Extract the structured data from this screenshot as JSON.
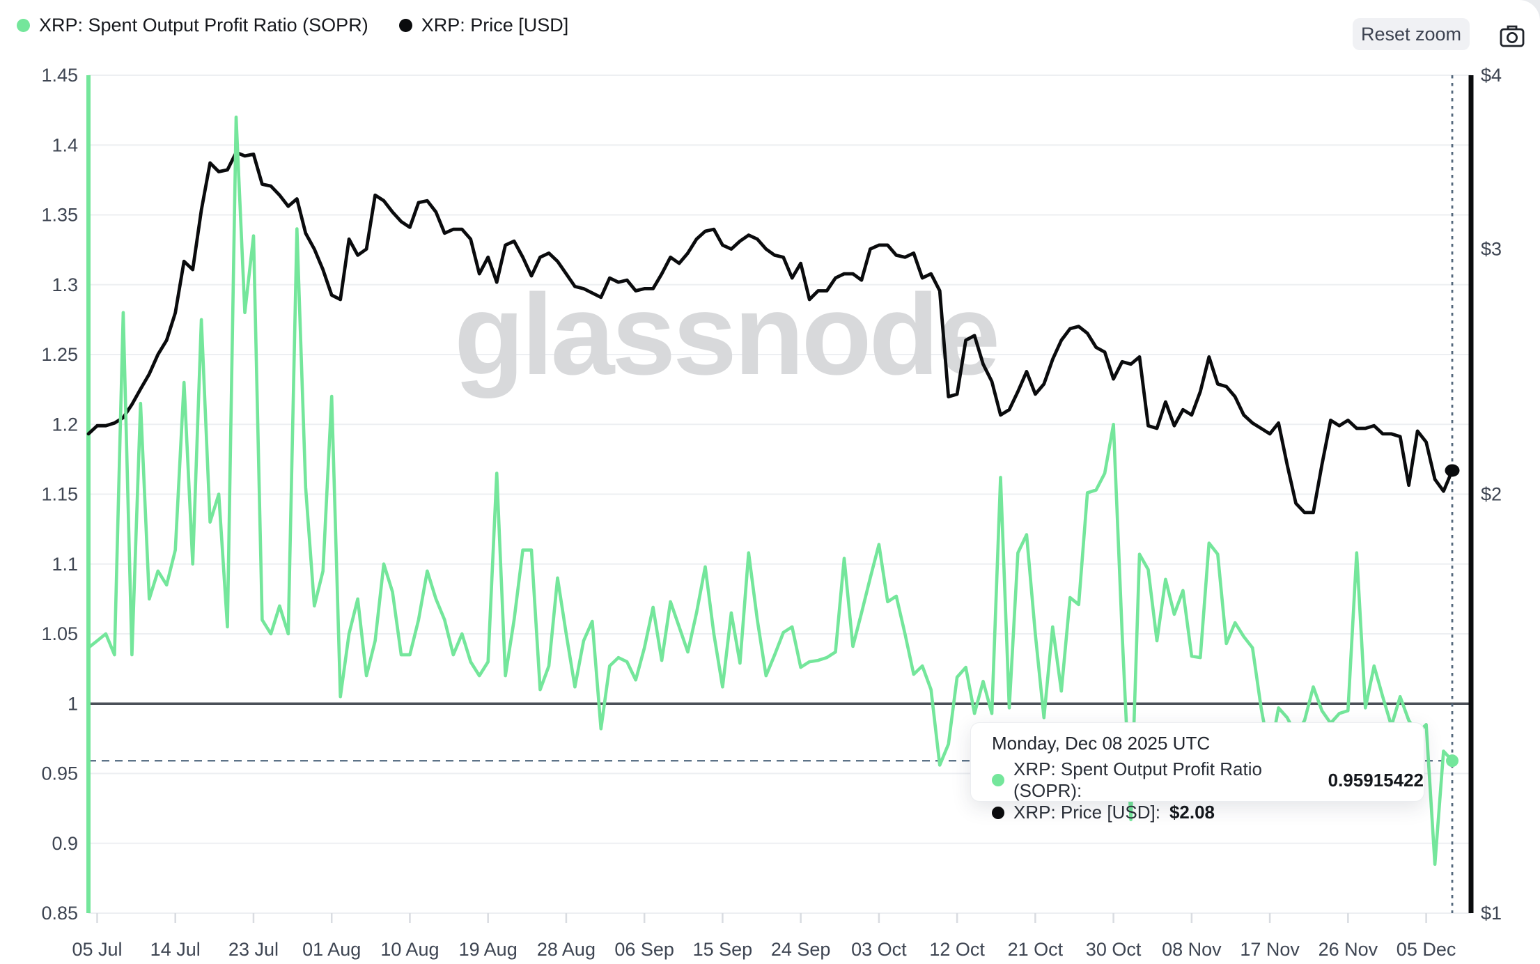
{
  "legend": {
    "items": [
      {
        "label": "XRP: Spent Output Profit Ratio (SOPR)",
        "color": "#74E69B"
      },
      {
        "label": "XRP: Price [USD]",
        "color": "#0A0B0D"
      }
    ]
  },
  "toolbar": {
    "reset_zoom_label": "Reset zoom",
    "camera_icon": "camera-icon"
  },
  "watermark_text": "glassnode",
  "tooltip": {
    "title": "Monday, Dec 08 2025 UTC",
    "rows": [
      {
        "color": "#74E69B",
        "label": "XRP: Spent Output Profit Ratio (SOPR):",
        "value": "0.95915422"
      },
      {
        "color": "#0A0B0D",
        "label": "XRP: Price [USD]:",
        "value": "$2.08"
      }
    ]
  },
  "chart_data": {
    "type": "line",
    "title": "",
    "grid": true,
    "left_axis": {
      "ticks": [
        "1.45",
        "1.4",
        "1.35",
        "1.3",
        "1.25",
        "1.2",
        "1.15",
        "1.1",
        "1.05",
        "1",
        "0.95",
        "0.9",
        "0.85"
      ],
      "range": [
        0.85,
        1.45
      ],
      "scale": "linear",
      "color": "#74E69B"
    },
    "right_axis": {
      "ticks": [
        {
          "label": "$4",
          "value": 4
        },
        {
          "label": "$3",
          "value": 3
        },
        {
          "label": "$2",
          "value": 2
        },
        {
          "label": "$1",
          "value": 1
        }
      ],
      "range": [
        1,
        4
      ],
      "scale": "log",
      "color": "#0A0B0D"
    },
    "x_ticks": [
      {
        "label": "05 Jul",
        "day_index": 1
      },
      {
        "label": "14 Jul",
        "day_index": 10
      },
      {
        "label": "23 Jul",
        "day_index": 19
      },
      {
        "label": "01 Aug",
        "day_index": 28
      },
      {
        "label": "10 Aug",
        "day_index": 37
      },
      {
        "label": "19 Aug",
        "day_index": 46
      },
      {
        "label": "28 Aug",
        "day_index": 55
      },
      {
        "label": "06 Sep",
        "day_index": 64
      },
      {
        "label": "15 Sep",
        "day_index": 73
      },
      {
        "label": "24 Sep",
        "day_index": 82
      },
      {
        "label": "03 Oct",
        "day_index": 91
      },
      {
        "label": "12 Oct",
        "day_index": 100
      },
      {
        "label": "21 Oct",
        "day_index": 109
      },
      {
        "label": "30 Oct",
        "day_index": 118
      },
      {
        "label": "08 Nov",
        "day_index": 127
      },
      {
        "label": "17 Nov",
        "day_index": 136
      },
      {
        "label": "26 Nov",
        "day_index": 145
      },
      {
        "label": "05 Dec",
        "day_index": 154
      }
    ],
    "reference_line_sopr": 1.0,
    "crosshair": {
      "date": "Dec 08 2025",
      "sopr": 0.95915422,
      "price_usd": 2.08
    },
    "dates": [
      "Jul 04",
      "Jul 05",
      "Jul 06",
      "Jul 07",
      "Jul 08",
      "Jul 09",
      "Jul 10",
      "Jul 11",
      "Jul 12",
      "Jul 13",
      "Jul 14",
      "Jul 15",
      "Jul 16",
      "Jul 17",
      "Jul 18",
      "Jul 19",
      "Jul 20",
      "Jul 21",
      "Jul 22",
      "Jul 23",
      "Jul 24",
      "Jul 25",
      "Jul 26",
      "Jul 27",
      "Jul 28",
      "Jul 29",
      "Jul 30",
      "Jul 31",
      "Aug 01",
      "Aug 02",
      "Aug 03",
      "Aug 04",
      "Aug 05",
      "Aug 06",
      "Aug 07",
      "Aug 08",
      "Aug 09",
      "Aug 10",
      "Aug 11",
      "Aug 12",
      "Aug 13",
      "Aug 14",
      "Aug 15",
      "Aug 16",
      "Aug 17",
      "Aug 18",
      "Aug 19",
      "Aug 20",
      "Aug 21",
      "Aug 22",
      "Aug 23",
      "Aug 24",
      "Aug 25",
      "Aug 26",
      "Aug 27",
      "Aug 28",
      "Aug 29",
      "Aug 30",
      "Aug 31",
      "Sep 01",
      "Sep 02",
      "Sep 03",
      "Sep 04",
      "Sep 05",
      "Sep 06",
      "Sep 07",
      "Sep 08",
      "Sep 09",
      "Sep 10",
      "Sep 11",
      "Sep 12",
      "Sep 13",
      "Sep 14",
      "Sep 15",
      "Sep 16",
      "Sep 17",
      "Sep 18",
      "Sep 19",
      "Sep 20",
      "Sep 21",
      "Sep 22",
      "Sep 23",
      "Sep 24",
      "Sep 25",
      "Sep 26",
      "Sep 27",
      "Sep 28",
      "Sep 29",
      "Sep 30",
      "Oct 01",
      "Oct 02",
      "Oct 03",
      "Oct 04",
      "Oct 05",
      "Oct 06",
      "Oct 07",
      "Oct 08",
      "Oct 09",
      "Oct 10",
      "Oct 11",
      "Oct 12",
      "Oct 13",
      "Oct 14",
      "Oct 15",
      "Oct 16",
      "Oct 17",
      "Oct 18",
      "Oct 19",
      "Oct 20",
      "Oct 21",
      "Oct 22",
      "Oct 23",
      "Oct 24",
      "Oct 25",
      "Oct 26",
      "Oct 27",
      "Oct 28",
      "Oct 29",
      "Oct 30",
      "Oct 31",
      "Nov 01",
      "Nov 02",
      "Nov 03",
      "Nov 04",
      "Nov 05",
      "Nov 06",
      "Nov 07",
      "Nov 08",
      "Nov 09",
      "Nov 10",
      "Nov 11",
      "Nov 12",
      "Nov 13",
      "Nov 14",
      "Nov 15",
      "Nov 16",
      "Nov 17",
      "Nov 18",
      "Nov 19",
      "Nov 20",
      "Nov 21",
      "Nov 22",
      "Nov 23",
      "Nov 24",
      "Nov 25",
      "Nov 26",
      "Nov 27",
      "Nov 28",
      "Nov 29",
      "Nov 30",
      "Dec 01",
      "Dec 02",
      "Dec 03",
      "Dec 04",
      "Dec 05",
      "Dec 06",
      "Dec 07",
      "Dec 08"
    ],
    "series": [
      {
        "name": "XRP: Spent Output Profit Ratio (SOPR)",
        "axis": "left",
        "color": "#74E69B",
        "values": [
          1.04,
          1.045,
          1.05,
          1.035,
          1.28,
          1.035,
          1.215,
          1.075,
          1.095,
          1.085,
          1.11,
          1.23,
          1.1,
          1.275,
          1.13,
          1.15,
          1.055,
          1.42,
          1.28,
          1.335,
          1.06,
          1.05,
          1.07,
          1.05,
          1.34,
          1.155,
          1.07,
          1.095,
          1.22,
          1.005,
          1.05,
          1.075,
          1.02,
          1.045,
          1.1,
          1.08,
          1.035,
          1.035,
          1.06,
          1.095,
          1.075,
          1.06,
          1.035,
          1.05,
          1.03,
          1.02,
          1.03,
          1.165,
          1.02,
          1.06,
          1.11,
          1.11,
          1.01,
          1.027,
          1.09,
          1.05,
          1.012,
          1.045,
          1.059,
          0.982,
          1.027,
          1.033,
          1.03,
          1.017,
          1.04,
          1.069,
          1.031,
          1.073,
          1.055,
          1.037,
          1.065,
          1.098,
          1.05,
          1.012,
          1.065,
          1.029,
          1.108,
          1.06,
          1.02,
          1.035,
          1.051,
          1.055,
          1.026,
          1.03,
          1.031,
          1.033,
          1.037,
          1.104,
          1.041,
          1.065,
          1.09,
          1.114,
          1.073,
          1.077,
          1.05,
          1.021,
          1.027,
          1.01,
          0.956,
          0.971,
          1.019,
          1.026,
          0.993,
          1.016,
          0.993,
          1.162,
          0.997,
          1.108,
          1.121,
          1.05,
          0.99,
          1.055,
          1.009,
          1.076,
          1.071,
          1.151,
          1.153,
          1.165,
          1.2,
          1.05,
          0.917,
          1.107,
          1.096,
          1.045,
          1.089,
          1.064,
          1.081,
          1.034,
          1.033,
          1.115,
          1.107,
          1.043,
          1.058,
          1.048,
          1.04,
          0.997,
          0.963,
          0.997,
          0.99,
          0.978,
          0.988,
          1.012,
          0.995,
          0.986,
          0.993,
          0.995,
          1.108,
          0.997,
          1.027,
          1.005,
          0.984,
          1.005,
          0.988,
          0.979,
          0.985,
          0.885,
          0.966,
          0.95915422
        ]
      },
      {
        "name": "XRP: Price [USD]",
        "axis": "right",
        "color": "#0A0B0D",
        "values": [
          2.21,
          2.24,
          2.24,
          2.25,
          2.27,
          2.32,
          2.38,
          2.44,
          2.52,
          2.58,
          2.7,
          2.94,
          2.9,
          3.2,
          3.46,
          3.41,
          3.42,
          3.52,
          3.5,
          3.51,
          3.34,
          3.33,
          3.28,
          3.22,
          3.26,
          3.08,
          3.0,
          2.9,
          2.78,
          2.76,
          3.05,
          2.97,
          3.0,
          3.28,
          3.25,
          3.19,
          3.14,
          3.11,
          3.24,
          3.25,
          3.19,
          3.08,
          3.1,
          3.1,
          3.05,
          2.88,
          2.96,
          2.84,
          3.02,
          3.04,
          2.96,
          2.87,
          2.96,
          2.98,
          2.94,
          2.88,
          2.82,
          2.81,
          2.79,
          2.77,
          2.86,
          2.84,
          2.85,
          2.8,
          2.81,
          2.81,
          2.88,
          2.96,
          2.93,
          2.98,
          3.05,
          3.09,
          3.1,
          3.02,
          3.0,
          3.04,
          3.07,
          3.05,
          3.0,
          2.97,
          2.96,
          2.86,
          2.93,
          2.76,
          2.8,
          2.8,
          2.86,
          2.88,
          2.88,
          2.85,
          3.0,
          3.02,
          3.02,
          2.97,
          2.96,
          2.98,
          2.86,
          2.88,
          2.8,
          2.35,
          2.36,
          2.58,
          2.6,
          2.48,
          2.41,
          2.28,
          2.3,
          2.37,
          2.45,
          2.36,
          2.4,
          2.5,
          2.58,
          2.63,
          2.64,
          2.61,
          2.55,
          2.53,
          2.42,
          2.49,
          2.48,
          2.51,
          2.24,
          2.23,
          2.33,
          2.24,
          2.3,
          2.28,
          2.37,
          2.51,
          2.4,
          2.39,
          2.35,
          2.28,
          2.25,
          2.23,
          2.21,
          2.25,
          2.1,
          1.97,
          1.94,
          1.94,
          2.1,
          2.26,
          2.24,
          2.26,
          2.23,
          2.23,
          2.24,
          2.21,
          2.21,
          2.2,
          2.03,
          2.22,
          2.18,
          2.05,
          2.01,
          2.08
        ]
      }
    ]
  }
}
